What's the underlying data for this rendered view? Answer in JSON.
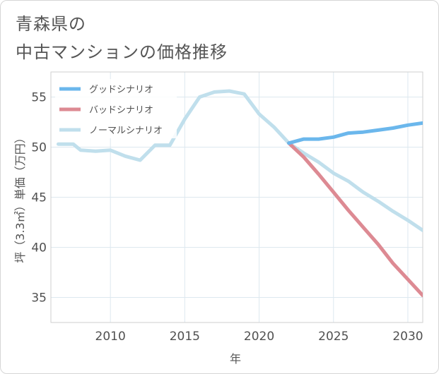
{
  "title_lines": [
    "青森県の",
    "中古マンションの価格推移"
  ],
  "chart_data": {
    "type": "line",
    "xlabel": "年",
    "ylabel": "坪（3.3㎡）単価（万円）",
    "xlim": [
      2006.0,
      2031.0
    ],
    "ylim": [
      32.5,
      57.5
    ],
    "xticks": [
      2010,
      2015,
      2020,
      2025,
      2030
    ],
    "yticks": [
      35,
      40,
      45,
      50,
      55
    ],
    "grid": true,
    "legend_position": "top-left",
    "series": [
      {
        "name": "グッドシナリオ",
        "color": "#6bb7ec",
        "points": [
          [
            2022,
            50.4
          ],
          [
            2023,
            50.8
          ],
          [
            2024,
            50.8
          ],
          [
            2025,
            51.0
          ],
          [
            2026,
            51.4
          ],
          [
            2027,
            51.5
          ],
          [
            2028,
            51.7
          ],
          [
            2029,
            51.9
          ],
          [
            2030,
            52.2
          ],
          [
            2031,
            52.4
          ]
        ]
      },
      {
        "name": "バッドシナリオ",
        "color": "#dd8a93",
        "points": [
          [
            2022,
            50.4
          ],
          [
            2023,
            49.0
          ],
          [
            2024,
            47.3
          ],
          [
            2025,
            45.5
          ],
          [
            2026,
            43.7
          ],
          [
            2027,
            42.0
          ],
          [
            2028,
            40.3
          ],
          [
            2029,
            38.4
          ],
          [
            2030,
            36.8
          ],
          [
            2031,
            35.2
          ]
        ]
      },
      {
        "name": "ノーマルシナリオ",
        "color": "#c0dfec",
        "points": [
          [
            2006.5,
            50.3
          ],
          [
            2007.5,
            50.3
          ],
          [
            2008,
            49.7
          ],
          [
            2009,
            49.6
          ],
          [
            2010,
            49.7
          ],
          [
            2011,
            49.1
          ],
          [
            2012,
            48.7
          ],
          [
            2013,
            50.2
          ],
          [
            2014,
            50.2
          ],
          [
            2015,
            52.8
          ],
          [
            2016,
            55.0
          ],
          [
            2017,
            55.5
          ],
          [
            2018,
            55.6
          ],
          [
            2019,
            55.3
          ],
          [
            2020,
            53.3
          ],
          [
            2021,
            52.0
          ],
          [
            2022,
            50.4
          ],
          [
            2023,
            49.4
          ],
          [
            2024,
            48.5
          ],
          [
            2025,
            47.4
          ],
          [
            2026,
            46.6
          ],
          [
            2027,
            45.5
          ],
          [
            2028,
            44.6
          ],
          [
            2029,
            43.6
          ],
          [
            2030,
            42.7
          ],
          [
            2031,
            41.7
          ]
        ]
      }
    ]
  }
}
